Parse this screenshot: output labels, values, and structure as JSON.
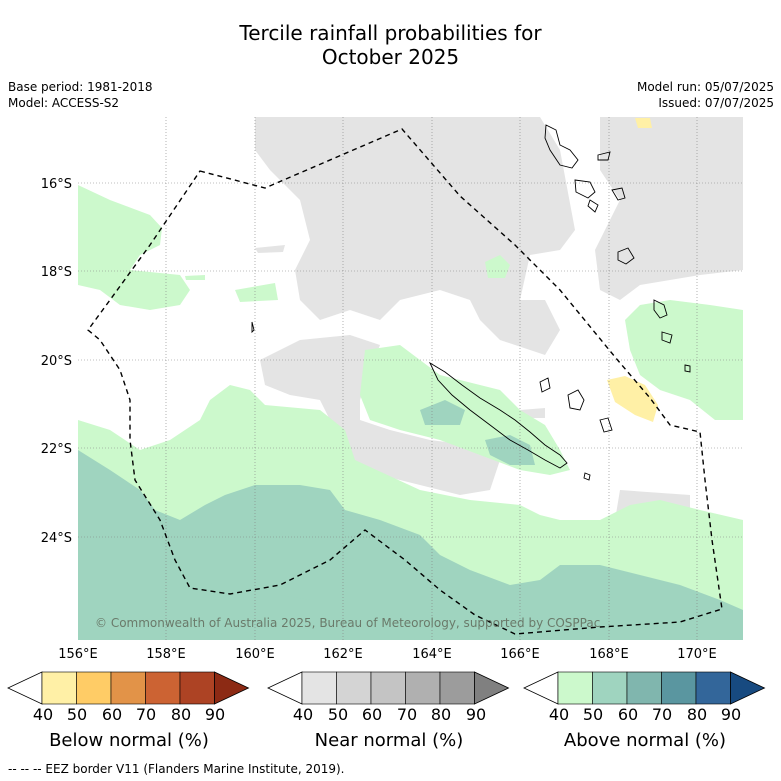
{
  "title": {
    "line1": "Tercile rainfall probabilities for",
    "line2": "October 2025"
  },
  "meta": {
    "base_period": "Base period: 1981-2018",
    "model": "Model: ACCESS-S2",
    "model_run": "Model run: 05/07/2025",
    "issued": "Issued: 07/07/2025"
  },
  "map": {
    "lat_labels": [
      "16°S",
      "18°S",
      "20°S",
      "22°S",
      "24°S"
    ],
    "lon_labels": [
      "156°E",
      "158°E",
      "160°E",
      "162°E",
      "164°E",
      "166°E",
      "168°E",
      "170°E"
    ],
    "copyright": "© Commonwealth of Australia 2025, Bureau of Meteorology, supported by COSPPac",
    "colors": {
      "above_50": "#ccf9cc",
      "above_60": "#9fd4bf",
      "near": "#e4e4e4",
      "below_40": "#fff0a6",
      "coast": "#000000"
    }
  },
  "colorbars": [
    {
      "label": "Below normal (%)",
      "ticks": [
        "40",
        "50",
        "60",
        "70",
        "80",
        "90"
      ],
      "colors": [
        "#ffffff",
        "#fff0a6",
        "#ffcc66",
        "#e29348",
        "#cc6333",
        "#ad4324",
        "#8c2a14"
      ]
    },
    {
      "label": "Near normal (%)",
      "ticks": [
        "40",
        "50",
        "60",
        "70",
        "80",
        "90"
      ],
      "colors": [
        "#ffffff",
        "#e4e4e4",
        "#d4d4d4",
        "#c4c4c4",
        "#b0b0b0",
        "#9c9c9c",
        "#808080"
      ]
    },
    {
      "label": "Above normal (%)",
      "ticks": [
        "40",
        "50",
        "60",
        "70",
        "80",
        "90"
      ],
      "colors": [
        "#ffffff",
        "#ccf9cc",
        "#9fd4bf",
        "#80b6ae",
        "#5a96a0",
        "#33669a",
        "#174a80"
      ]
    }
  ],
  "footer": "-- -- -- EEZ border V11 (Flanders Marine Institute, 2019)."
}
